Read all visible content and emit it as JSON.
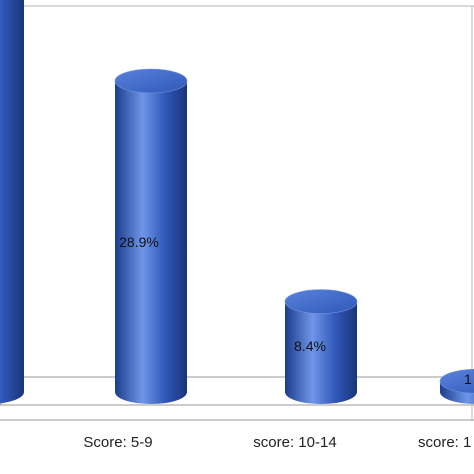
{
  "chart_data": {
    "type": "bar",
    "style": "3d-cylinder",
    "categories": [
      "",
      "Score: 5-9",
      "score: 10-14",
      "score: 1"
    ],
    "values": [
      62.0,
      28.9,
      8.4,
      1.0
    ],
    "value_labels": [
      "",
      "28.9%",
      "8.4%",
      "1"
    ],
    "ylim": [
      0,
      70
    ],
    "grid": false,
    "legend": "none",
    "colors": {
      "bar": "#2f58b8",
      "bar_dark": "#1c3c8c",
      "bar_light": "#6f96e8",
      "top": "#3f6ad0",
      "floor_edge": "#9a9a9a"
    }
  }
}
